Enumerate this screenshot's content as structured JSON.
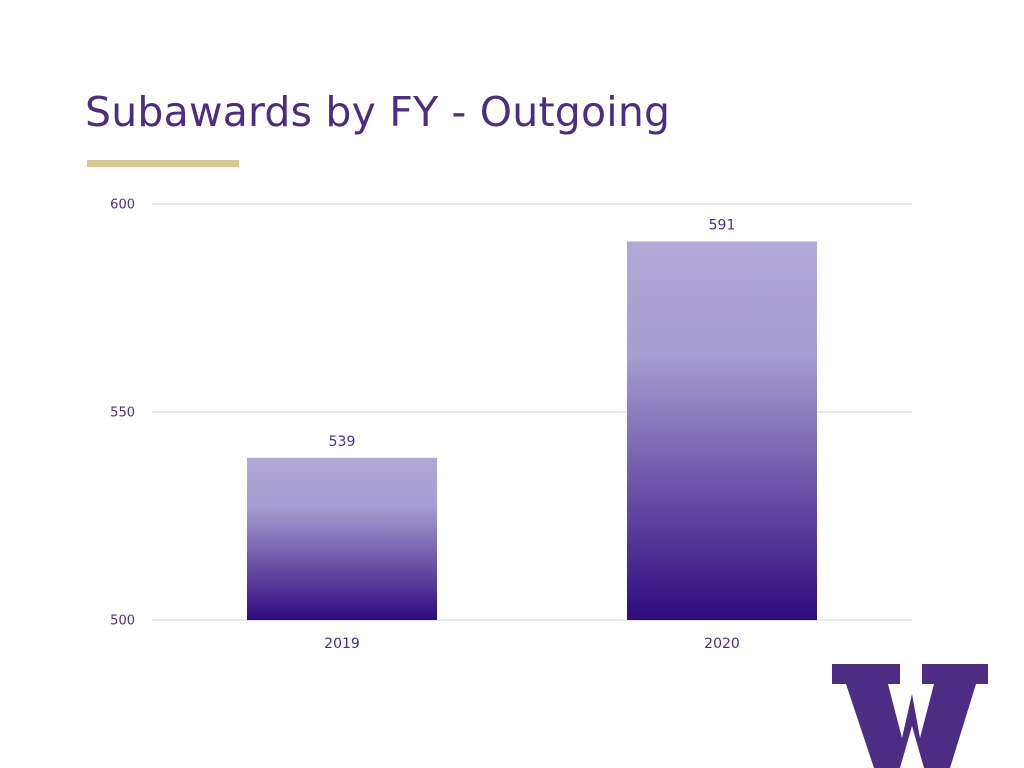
{
  "slide": {
    "title": "Subawards by FY - Outgoing"
  },
  "colors": {
    "title": "#4b2e83",
    "accent_rule": "#d9c98f",
    "bar_top": "#b2a9d6",
    "bar_bottom": "#2e0b7e",
    "gridline": "#dcdcec",
    "logo": "#4b2e83"
  },
  "logo": {
    "icon": "uw-w-logo-icon"
  },
  "chart_data": {
    "type": "bar",
    "title": "",
    "xlabel": "",
    "ylabel": "",
    "categories": [
      "2019",
      "2020"
    ],
    "values": [
      539,
      591
    ],
    "data_labels": [
      "539",
      "591"
    ],
    "ylim": [
      500,
      600
    ],
    "yticks": [
      500,
      550,
      600
    ],
    "ytick_labels": [
      "500",
      "550",
      "600"
    ],
    "grid": true,
    "legend": "none"
  }
}
